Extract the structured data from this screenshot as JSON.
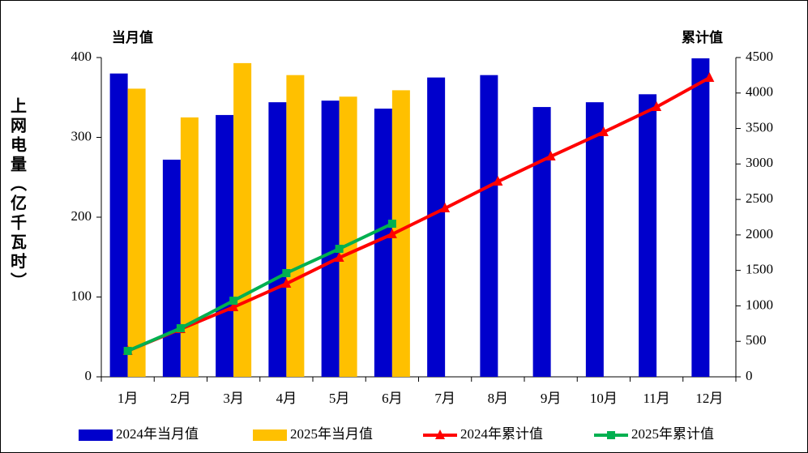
{
  "chart_data": {
    "type": "bar-line",
    "y_label": "上网电量（亿千瓦时）",
    "left_axis_title": "当月值",
    "right_axis_title": "累计值",
    "categories": [
      "1月",
      "2月",
      "3月",
      "4月",
      "5月",
      "6月",
      "7月",
      "8月",
      "9月",
      "10月",
      "11月",
      "12月"
    ],
    "series": [
      {
        "name": "2024年当月值",
        "type": "bar",
        "color": "#0000cc",
        "values": [
          380,
          272,
          328,
          344,
          346,
          336,
          375,
          378,
          338,
          344,
          354,
          399
        ]
      },
      {
        "name": "2025年当月值",
        "type": "bar",
        "color": "#ffc000",
        "values": [
          361,
          325,
          393,
          378,
          351,
          359,
          null,
          null,
          null,
          null,
          null,
          null
        ]
      },
      {
        "name": "2024年累计值",
        "type": "line",
        "axis": "y2",
        "marker": "triangle",
        "color": "#ff0000",
        "values": [
          365,
          674,
          982,
          1313,
          1679,
          2010,
          2375,
          2752,
          3106,
          3449,
          3803,
          4214
        ]
      },
      {
        "name": "2025年累计值",
        "type": "line",
        "axis": "y2",
        "marker": "square",
        "color": "#00b050",
        "values": [
          365,
          685,
          1073,
          1462,
          1804,
          2158,
          null,
          null,
          null,
          null,
          null,
          null
        ]
      }
    ],
    "ylim": [
      0,
      400
    ],
    "yticks": [
      0,
      100,
      200,
      300,
      400
    ],
    "y2lim": [
      0,
      4500
    ],
    "y2ticks": [
      0,
      500,
      1000,
      1500,
      2000,
      2500,
      3000,
      3500,
      4000,
      4500
    ],
    "legend": "bottom"
  }
}
